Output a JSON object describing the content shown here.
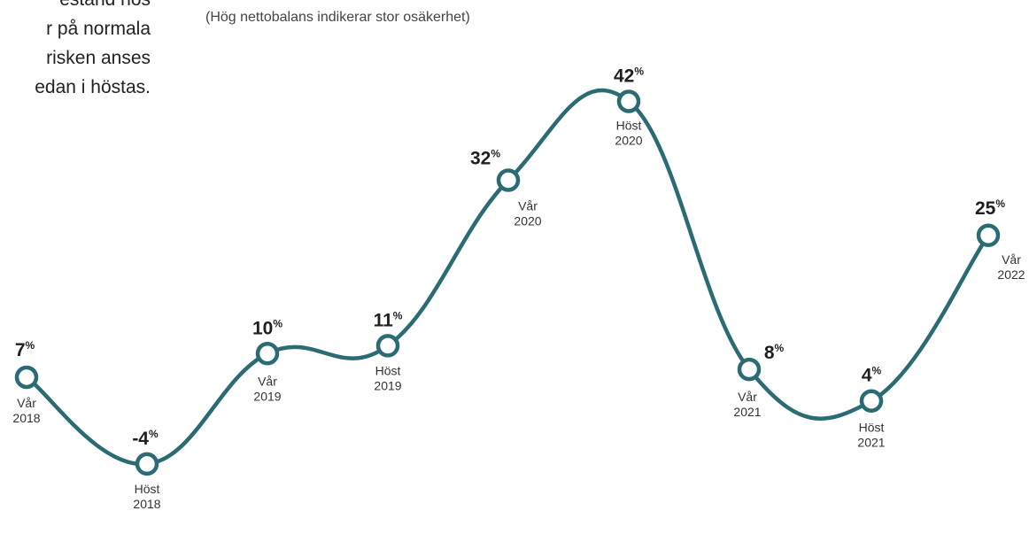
{
  "intro_text": {
    "lines": [
      "estånd hos",
      "r på normala",
      "risken anses",
      "edan i höstas."
    ]
  },
  "chart_data": {
    "type": "line",
    "title": "",
    "subtitle": "(Hög nettobalans indikerar stor osäkerhet)",
    "xlabel": "",
    "ylabel": "",
    "unit": "%",
    "grid": false,
    "legend": "none",
    "line_color": "#2b6b73",
    "marker_fill": "#ffffff",
    "points": [
      {
        "season": "Vår",
        "year": "2018",
        "value": 7,
        "display": "7"
      },
      {
        "season": "Höst",
        "year": "2018",
        "value": -4,
        "display": "-4"
      },
      {
        "season": "Vår",
        "year": "2019",
        "value": 10,
        "display": "10"
      },
      {
        "season": "Höst",
        "year": "2019",
        "value": 11,
        "display": "11"
      },
      {
        "season": "Vår",
        "year": "2020",
        "value": 32,
        "display": "32"
      },
      {
        "season": "Höst",
        "year": "2020",
        "value": 42,
        "display": "42"
      },
      {
        "season": "Vår",
        "year": "2021",
        "value": 8,
        "display": "8"
      },
      {
        "season": "Höst",
        "year": "2021",
        "value": 4,
        "display": "4"
      },
      {
        "season": "Vår",
        "year": "2022",
        "value": 25,
        "display": "25"
      }
    ]
  }
}
